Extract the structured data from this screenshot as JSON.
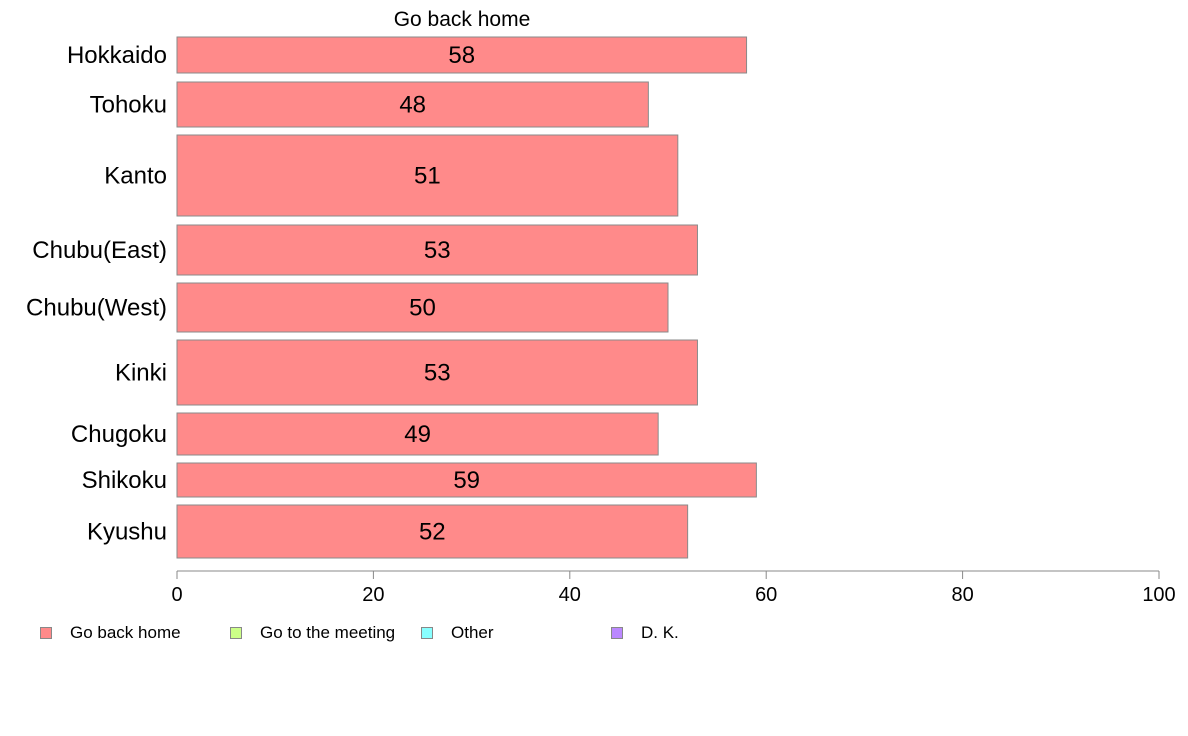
{
  "chart_data": {
    "type": "bar",
    "orientation": "horizontal",
    "title": "Go back home",
    "categories": [
      "Hokkaido",
      "Tohoku",
      "Kanto",
      "Chubu(East)",
      "Chubu(West)",
      "Kinki",
      "Chugoku",
      "Shikoku",
      "Kyushu"
    ],
    "series": [
      {
        "name": "Go back home",
        "values": [
          58,
          48,
          51,
          53,
          50,
          53,
          49,
          59,
          52
        ],
        "color": "#ff8a8a"
      }
    ],
    "xlim": [
      0,
      100
    ],
    "x_ticks": [
      0,
      20,
      40,
      60,
      80,
      100
    ],
    "grid": false,
    "legend_position": "bottom"
  },
  "legend": [
    {
      "label": "Go back home",
      "color": "#ff8a8a"
    },
    {
      "label": "Go to the meeting",
      "color": "#ccff88"
    },
    {
      "label": "Other",
      "color": "#88ffff"
    },
    {
      "label": "D. K.",
      "color": "#bb88ff"
    }
  ]
}
